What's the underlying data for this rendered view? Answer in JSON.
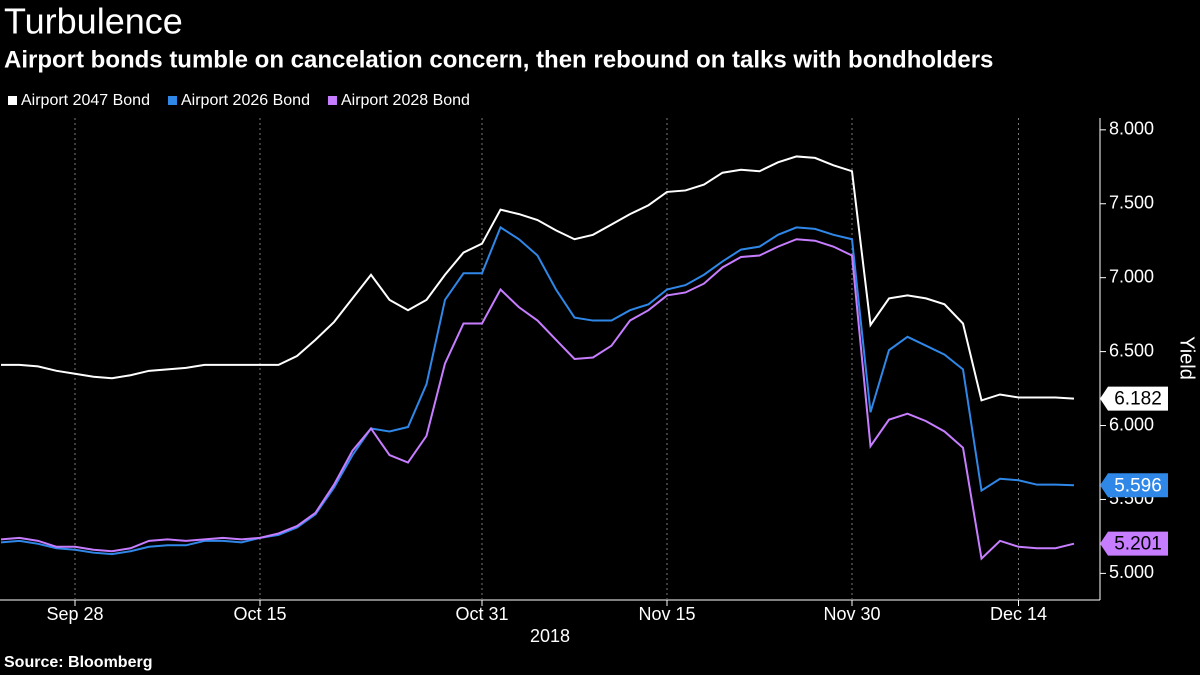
{
  "chart_data": {
    "type": "line",
    "title": "Turbulence",
    "subtitle": "Airport bonds tumble on cancelation concern, then rebound on talks with bondholders",
    "source": "Source: Bloomberg",
    "ylabel": "Yield",
    "xlabel": "2018",
    "categories": [
      null,
      null,
      null,
      null,
      "Sep 28",
      null,
      null,
      null,
      null,
      null,
      null,
      null,
      null,
      null,
      "Oct 15",
      null,
      null,
      null,
      null,
      null,
      null,
      null,
      null,
      null,
      null,
      null,
      "Oct 31",
      null,
      null,
      null,
      null,
      null,
      null,
      null,
      null,
      null,
      "Nov 15",
      null,
      null,
      null,
      null,
      null,
      null,
      null,
      null,
      null,
      "Nov 30",
      null,
      null,
      null,
      null,
      null,
      null,
      null,
      null,
      "Dec 14",
      null,
      null,
      null
    ],
    "series": [
      {
        "name": "Airport 2047 Bond",
        "color": "#ffffff",
        "values": [
          6.41,
          6.41,
          6.4,
          6.37,
          6.35,
          6.33,
          6.32,
          6.34,
          6.37,
          6.38,
          6.39,
          6.41,
          6.41,
          6.41,
          6.41,
          6.41,
          6.47,
          6.58,
          6.7,
          6.86,
          7.02,
          6.85,
          6.78,
          6.85,
          7.02,
          7.17,
          7.23,
          7.46,
          7.43,
          7.39,
          7.32,
          7.26,
          7.29,
          7.36,
          7.43,
          7.49,
          7.58,
          7.59,
          7.63,
          7.71,
          7.73,
          7.72,
          7.78,
          7.82,
          7.81,
          7.76,
          7.72,
          6.68,
          6.86,
          6.88,
          6.86,
          6.82,
          6.69,
          6.17,
          6.21,
          6.19,
          6.19,
          6.19,
          6.182
        ]
      },
      {
        "name": "Airport 2026 Bond",
        "color": "#2f87e8",
        "values": [
          5.21,
          5.22,
          5.2,
          5.17,
          5.16,
          5.14,
          5.13,
          5.15,
          5.18,
          5.19,
          5.19,
          5.22,
          5.22,
          5.21,
          5.24,
          5.26,
          5.31,
          5.4,
          5.58,
          5.8,
          5.98,
          5.96,
          5.99,
          6.28,
          6.85,
          7.03,
          7.03,
          7.34,
          7.26,
          7.15,
          6.92,
          6.73,
          6.71,
          6.71,
          6.78,
          6.82,
          6.92,
          6.95,
          7.02,
          7.11,
          7.19,
          7.21,
          7.29,
          7.34,
          7.33,
          7.29,
          7.26,
          6.09,
          6.51,
          6.6,
          6.54,
          6.48,
          6.38,
          5.56,
          5.64,
          5.63,
          5.6,
          5.6,
          5.596
        ]
      },
      {
        "name": "Airport 2028 Bond",
        "color": "#c77dff",
        "values": [
          5.23,
          5.24,
          5.22,
          5.18,
          5.18,
          5.16,
          5.15,
          5.17,
          5.22,
          5.23,
          5.22,
          5.23,
          5.24,
          5.23,
          5.24,
          5.27,
          5.32,
          5.41,
          5.6,
          5.83,
          5.98,
          5.8,
          5.75,
          5.93,
          6.42,
          6.69,
          6.69,
          6.92,
          6.8,
          6.71,
          6.58,
          6.45,
          6.46,
          6.54,
          6.71,
          6.78,
          6.88,
          6.9,
          6.96,
          7.07,
          7.14,
          7.15,
          7.21,
          7.26,
          7.25,
          7.21,
          7.15,
          5.86,
          6.04,
          6.08,
          6.03,
          5.96,
          5.85,
          5.1,
          5.22,
          5.18,
          5.17,
          5.17,
          5.201
        ]
      }
    ],
    "ylim": [
      4.82,
      8.08
    ],
    "yticks": [
      {
        "value": 5,
        "label": "5.000"
      },
      {
        "value": 5.5,
        "label": "5.500"
      },
      {
        "value": 6,
        "label": "6.000"
      },
      {
        "value": 6.5,
        "label": "6.500"
      },
      {
        "value": 7,
        "label": "7.000"
      },
      {
        "value": 7.5,
        "label": "7.500"
      },
      {
        "value": 8,
        "label": "8.000"
      }
    ],
    "grid": true,
    "legend": "top-left"
  }
}
